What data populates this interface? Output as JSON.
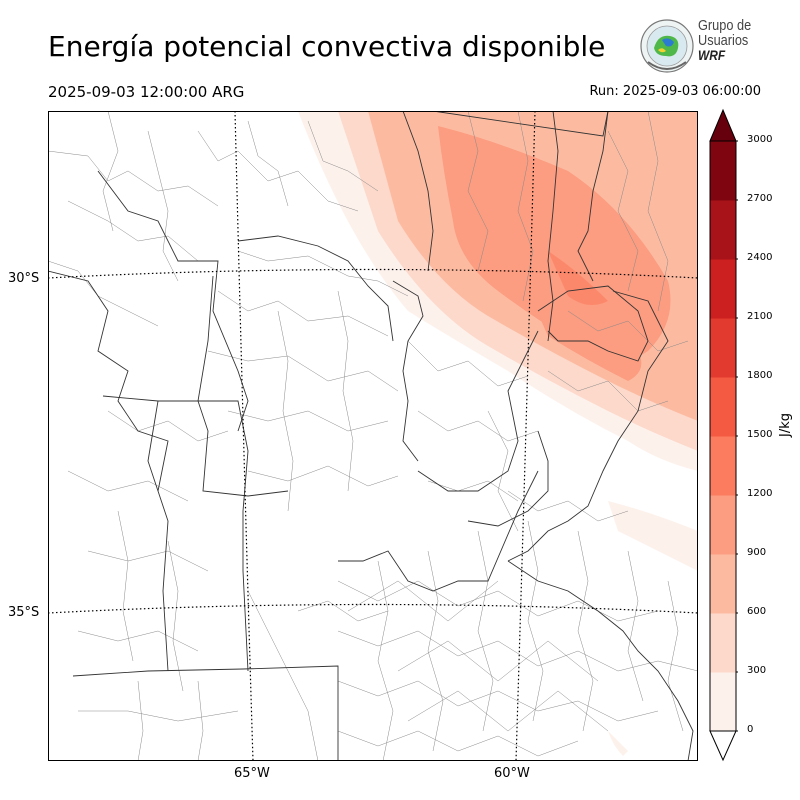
{
  "header": {
    "title": "Energía potencial convectiva disponible",
    "valid_time": "2025-09-03 12:00:00 ARG",
    "run_time": "Run: 2025-09-03 06:00:00"
  },
  "logo": {
    "line1": "Grupo de",
    "line2": "Usuarios",
    "line3": "WRF"
  },
  "map": {
    "lat_labels": [
      "30°S",
      "35°S"
    ],
    "lon_labels": [
      "65°W",
      "60°W"
    ]
  },
  "colorbar": {
    "unit": "J/kg",
    "ticks": [
      "0",
      "300",
      "600",
      "900",
      "1200",
      "1500",
      "1800",
      "2100",
      "2400",
      "2700",
      "3000"
    ],
    "colors": [
      "#fdf1ec",
      "#fdd9cb",
      "#fcbba1",
      "#fc9c80",
      "#fb7c5f",
      "#f45a41",
      "#e23a2e",
      "#cc1f1f",
      "#a81319",
      "#7f0610"
    ],
    "over_color": "#67000d",
    "under_color": "#ffffff"
  }
}
